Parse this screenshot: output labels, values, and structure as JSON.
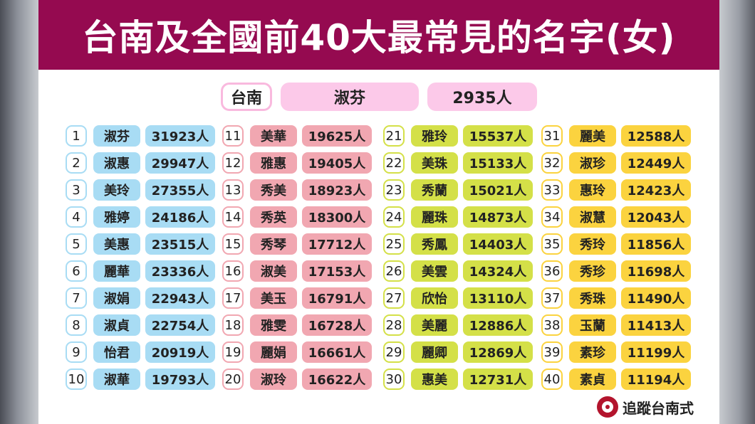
{
  "title": "台南及全國前40大最常見的名字(女)",
  "highlight": {
    "label": "台南",
    "name": "淑芬",
    "count": "2935人"
  },
  "brand": {
    "text": "追蹤台南式",
    "icon": "plum-blossom-icon"
  },
  "colors": {
    "title_bg": "#950a50",
    "col1": "#a8dcf4",
    "col2": "#f1a7b1",
    "col3": "#d4e048",
    "col4": "#fbd33f",
    "highlight": "#fcc9e9"
  },
  "columns": [
    {
      "items": [
        {
          "rank": "1",
          "name": "淑芬",
          "count": "31923人"
        },
        {
          "rank": "2",
          "name": "淑惠",
          "count": "29947人"
        },
        {
          "rank": "3",
          "name": "美玲",
          "count": "27355人"
        },
        {
          "rank": "4",
          "name": "雅婷",
          "count": "24186人"
        },
        {
          "rank": "5",
          "name": "美惠",
          "count": "23515人"
        },
        {
          "rank": "6",
          "name": "麗華",
          "count": "23336人"
        },
        {
          "rank": "7",
          "name": "淑娟",
          "count": "22943人"
        },
        {
          "rank": "8",
          "name": "淑貞",
          "count": "22754人"
        },
        {
          "rank": "9",
          "name": "怡君",
          "count": "20919人"
        },
        {
          "rank": "10",
          "name": "淑華",
          "count": "19793人"
        }
      ]
    },
    {
      "items": [
        {
          "rank": "11",
          "name": "美華",
          "count": "19625人"
        },
        {
          "rank": "12",
          "name": "雅惠",
          "count": "19405人"
        },
        {
          "rank": "13",
          "name": "秀美",
          "count": "18923人"
        },
        {
          "rank": "14",
          "name": "秀英",
          "count": "18300人"
        },
        {
          "rank": "15",
          "name": "秀琴",
          "count": "17712人"
        },
        {
          "rank": "16",
          "name": "淑美",
          "count": "17153人"
        },
        {
          "rank": "17",
          "name": "美玉",
          "count": "16791人"
        },
        {
          "rank": "18",
          "name": "雅雯",
          "count": "16728人"
        },
        {
          "rank": "19",
          "name": "麗娟",
          "count": "16661人"
        },
        {
          "rank": "20",
          "name": "淑玲",
          "count": "16622人"
        }
      ]
    },
    {
      "items": [
        {
          "rank": "21",
          "name": "雅玲",
          "count": "15537人"
        },
        {
          "rank": "22",
          "name": "美珠",
          "count": "15133人"
        },
        {
          "rank": "23",
          "name": "秀蘭",
          "count": "15021人"
        },
        {
          "rank": "24",
          "name": "麗珠",
          "count": "14873人"
        },
        {
          "rank": "25",
          "name": "秀鳳",
          "count": "14403人"
        },
        {
          "rank": "26",
          "name": "美雲",
          "count": "14324人"
        },
        {
          "rank": "27",
          "name": "欣怡",
          "count": "13110人"
        },
        {
          "rank": "28",
          "name": "美麗",
          "count": "12886人"
        },
        {
          "rank": "29",
          "name": "麗卿",
          "count": "12869人"
        },
        {
          "rank": "30",
          "name": "惠美",
          "count": "12731人"
        }
      ]
    },
    {
      "items": [
        {
          "rank": "31",
          "name": "麗美",
          "count": "12588人"
        },
        {
          "rank": "32",
          "name": "淑珍",
          "count": "12449人"
        },
        {
          "rank": "33",
          "name": "惠玲",
          "count": "12423人"
        },
        {
          "rank": "34",
          "name": "淑慧",
          "count": "12043人"
        },
        {
          "rank": "35",
          "name": "秀玲",
          "count": "11856人"
        },
        {
          "rank": "36",
          "name": "秀珍",
          "count": "11698人"
        },
        {
          "rank": "37",
          "name": "秀珠",
          "count": "11490人"
        },
        {
          "rank": "38",
          "name": "玉蘭",
          "count": "11413人"
        },
        {
          "rank": "39",
          "name": "素珍",
          "count": "11199人"
        },
        {
          "rank": "40",
          "name": "素貞",
          "count": "11194人"
        }
      ]
    }
  ]
}
